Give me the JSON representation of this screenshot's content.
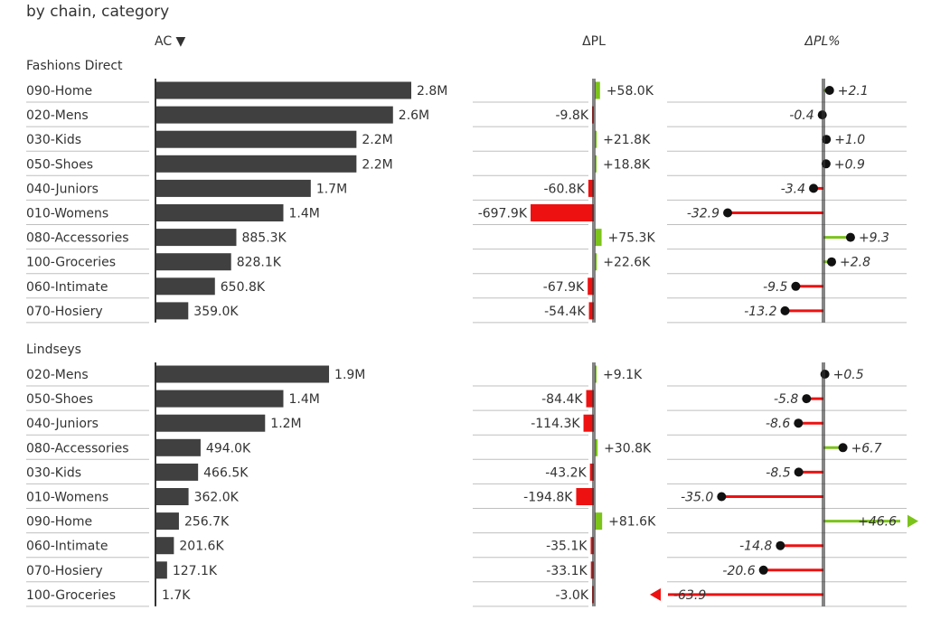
{
  "title": "by chain, category",
  "headers": {
    "ac": "AC ▼",
    "dpl": "ΔPL",
    "dplp": "ΔPL%"
  },
  "colors": {
    "bar": "#404040",
    "positive": "#7cc31b",
    "negative": "#ee1111",
    "axis": "#333333",
    "grid": "#bfbfbf"
  },
  "chart_data": {
    "type": "bar",
    "title": "by chain, category",
    "groups": [
      {
        "name": "Fashions Direct",
        "rows": [
          {
            "category": "090-Home",
            "ac": 2800000,
            "ac_label": "2.8M",
            "dpl": 58000,
            "dpl_label": "+58.0K",
            "dplp": 2.1,
            "dplp_label": "+2.1"
          },
          {
            "category": "020-Mens",
            "ac": 2600000,
            "ac_label": "2.6M",
            "dpl": -9800,
            "dpl_label": "-9.8K",
            "dplp": -0.4,
            "dplp_label": "-0.4"
          },
          {
            "category": "030-Kids",
            "ac": 2200000,
            "ac_label": "2.2M",
            "dpl": 21800,
            "dpl_label": "+21.8K",
            "dplp": 1.0,
            "dplp_label": "+1.0"
          },
          {
            "category": "050-Shoes",
            "ac": 2200000,
            "ac_label": "2.2M",
            "dpl": 18800,
            "dpl_label": "+18.8K",
            "dplp": 0.9,
            "dplp_label": "+0.9"
          },
          {
            "category": "040-Juniors",
            "ac": 1700000,
            "ac_label": "1.7M",
            "dpl": -60800,
            "dpl_label": "-60.8K",
            "dplp": -3.4,
            "dplp_label": "-3.4"
          },
          {
            "category": "010-Womens",
            "ac": 1400000,
            "ac_label": "1.4M",
            "dpl": -697900,
            "dpl_label": "-697.9K",
            "dplp": -32.9,
            "dplp_label": "-32.9"
          },
          {
            "category": "080-Accessories",
            "ac": 885300,
            "ac_label": "885.3K",
            "dpl": 75300,
            "dpl_label": "+75.3K",
            "dplp": 9.3,
            "dplp_label": "+9.3"
          },
          {
            "category": "100-Groceries",
            "ac": 828100,
            "ac_label": "828.1K",
            "dpl": 22600,
            "dpl_label": "+22.6K",
            "dplp": 2.8,
            "dplp_label": "+2.8"
          },
          {
            "category": "060-Intimate",
            "ac": 650800,
            "ac_label": "650.8K",
            "dpl": -67900,
            "dpl_label": "-67.9K",
            "dplp": -9.5,
            "dplp_label": "-9.5"
          },
          {
            "category": "070-Hosiery",
            "ac": 359000,
            "ac_label": "359.0K",
            "dpl": -54400,
            "dpl_label": "-54.4K",
            "dplp": -13.2,
            "dplp_label": "-13.2"
          }
        ]
      },
      {
        "name": "Lindseys",
        "rows": [
          {
            "category": "020-Mens",
            "ac": 1900000,
            "ac_label": "1.9M",
            "dpl": 9100,
            "dpl_label": "+9.1K",
            "dplp": 0.5,
            "dplp_label": "+0.5"
          },
          {
            "category": "050-Shoes",
            "ac": 1400000,
            "ac_label": "1.4M",
            "dpl": -84400,
            "dpl_label": "-84.4K",
            "dplp": -5.8,
            "dplp_label": "-5.8"
          },
          {
            "category": "040-Juniors",
            "ac": 1200000,
            "ac_label": "1.2M",
            "dpl": -114300,
            "dpl_label": "-114.3K",
            "dplp": -8.6,
            "dplp_label": "-8.6"
          },
          {
            "category": "080-Accessories",
            "ac": 494000,
            "ac_label": "494.0K",
            "dpl": 30800,
            "dpl_label": "+30.8K",
            "dplp": 6.7,
            "dplp_label": "+6.7"
          },
          {
            "category": "030-Kids",
            "ac": 466500,
            "ac_label": "466.5K",
            "dpl": -43200,
            "dpl_label": "-43.2K",
            "dplp": -8.5,
            "dplp_label": "-8.5"
          },
          {
            "category": "010-Womens",
            "ac": 362000,
            "ac_label": "362.0K",
            "dpl": -194800,
            "dpl_label": "-194.8K",
            "dplp": -35.0,
            "dplp_label": "-35.0"
          },
          {
            "category": "090-Home",
            "ac": 256700,
            "ac_label": "256.7K",
            "dpl": 81600,
            "dpl_label": "+81.6K",
            "dplp": 46.6,
            "dplp_label": "+46.6"
          },
          {
            "category": "060-Intimate",
            "ac": 201600,
            "ac_label": "201.6K",
            "dpl": -35100,
            "dpl_label": "-35.1K",
            "dplp": -14.8,
            "dplp_label": "-14.8"
          },
          {
            "category": "070-Hosiery",
            "ac": 127100,
            "ac_label": "127.1K",
            "dpl": -33100,
            "dpl_label": "-33.1K",
            "dplp": -20.6,
            "dplp_label": "-20.6"
          },
          {
            "category": "100-Groceries",
            "ac": 1700,
            "ac_label": "1.7K",
            "dpl": -3000,
            "dpl_label": "-3.0K",
            "dplp": -63.9,
            "dplp_label": "-63.9"
          }
        ]
      }
    ]
  }
}
